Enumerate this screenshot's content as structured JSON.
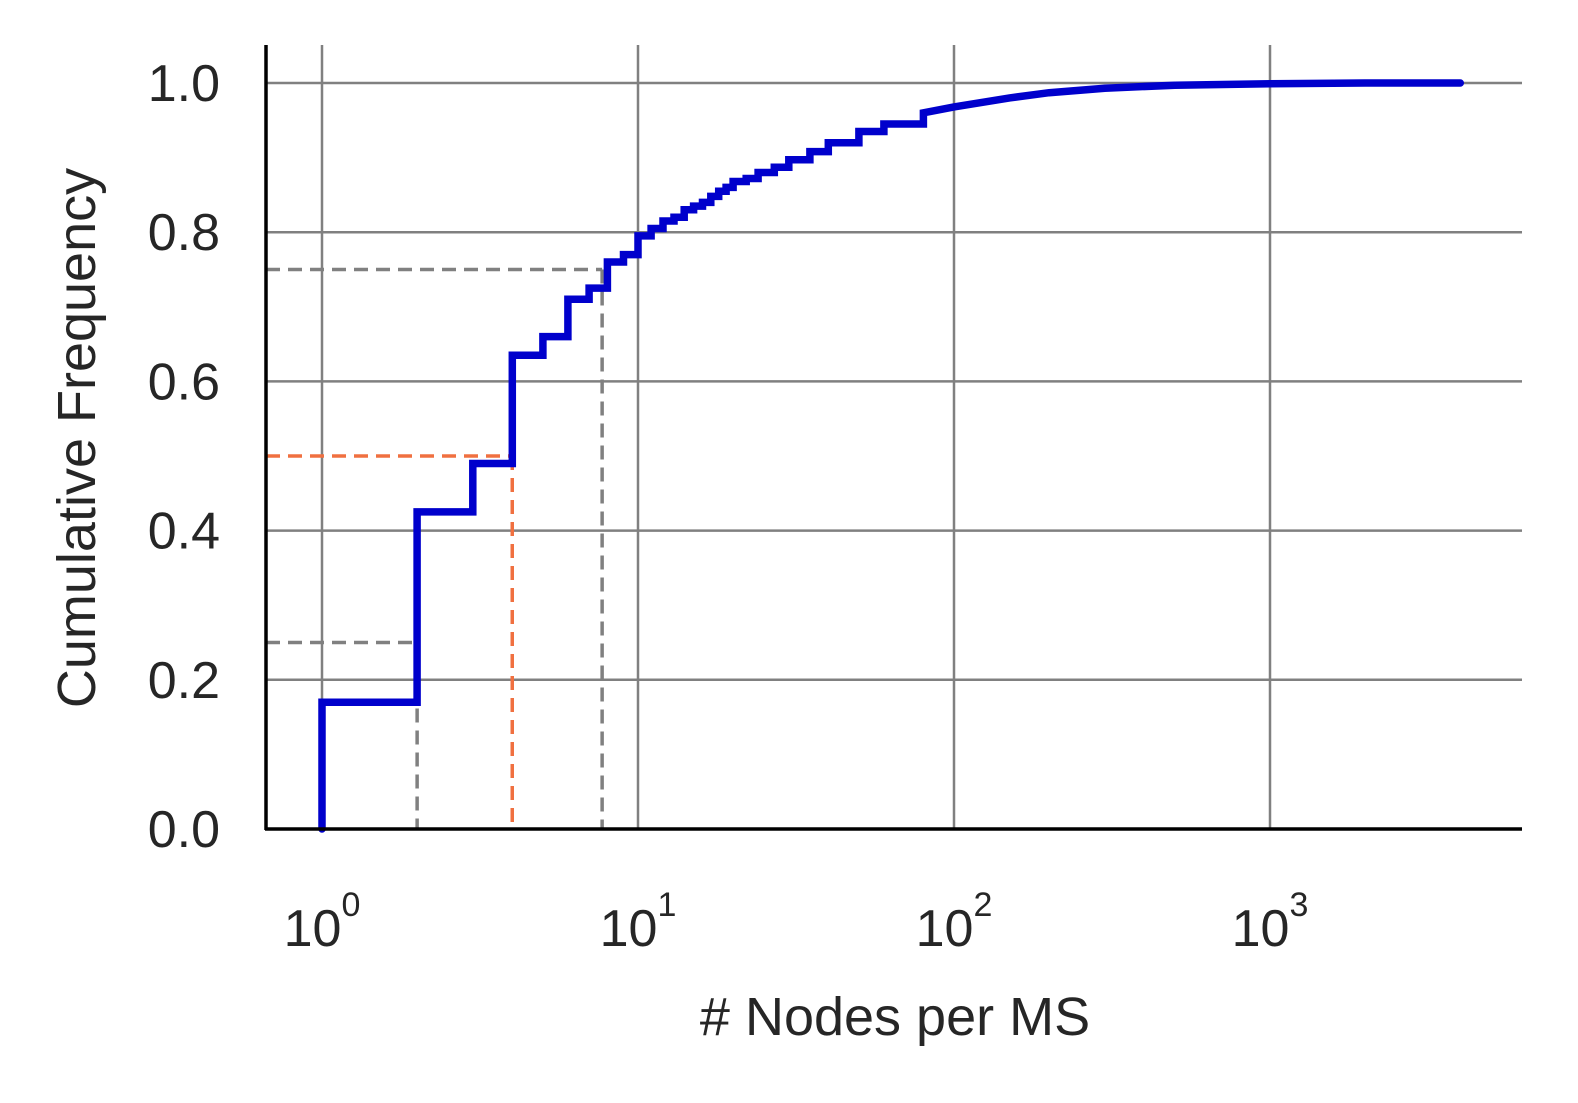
{
  "chart_data": {
    "type": "line",
    "title": "",
    "xlabel": "# Nodes per MS",
    "ylabel": "Cumulative Frequency",
    "x_scale": "log",
    "xlim": [
      0.67,
      5600
    ],
    "ylim": [
      0.0,
      1.05
    ],
    "grid": true,
    "x_ticks": [
      {
        "value": 1,
        "base": "10",
        "exp": "0"
      },
      {
        "value": 10,
        "base": "10",
        "exp": "1"
      },
      {
        "value": 100,
        "base": "10",
        "exp": "2"
      },
      {
        "value": 1000,
        "base": "10",
        "exp": "3"
      }
    ],
    "y_ticks": [
      {
        "value": 0.0,
        "label": "0.0"
      },
      {
        "value": 0.2,
        "label": "0.2"
      },
      {
        "value": 0.4,
        "label": "0.4"
      },
      {
        "value": 0.6,
        "label": "0.6"
      },
      {
        "value": 0.8,
        "label": "0.8"
      },
      {
        "value": 1.0,
        "label": "1.0"
      }
    ],
    "series": [
      {
        "color": "#0000cc",
        "step": true,
        "points": [
          [
            1,
            0.0
          ],
          [
            1,
            0.17
          ],
          [
            2,
            0.17
          ],
          [
            2,
            0.425
          ],
          [
            3,
            0.425
          ],
          [
            3,
            0.49
          ],
          [
            4,
            0.49
          ],
          [
            4,
            0.635
          ],
          [
            5,
            0.635
          ],
          [
            5,
            0.66
          ],
          [
            6,
            0.66
          ],
          [
            6,
            0.71
          ],
          [
            7,
            0.71
          ],
          [
            7,
            0.725
          ],
          [
            8,
            0.725
          ],
          [
            8,
            0.76
          ],
          [
            9,
            0.76
          ],
          [
            9,
            0.77
          ],
          [
            10,
            0.77
          ],
          [
            10,
            0.795
          ],
          [
            11,
            0.795
          ],
          [
            11,
            0.805
          ],
          [
            12,
            0.805
          ],
          [
            12,
            0.815
          ],
          [
            13,
            0.815
          ],
          [
            13,
            0.82
          ],
          [
            14,
            0.82
          ],
          [
            14,
            0.83
          ],
          [
            15,
            0.83
          ],
          [
            15,
            0.835
          ],
          [
            16,
            0.835
          ],
          [
            16,
            0.84
          ],
          [
            17,
            0.84
          ],
          [
            17,
            0.848
          ],
          [
            18,
            0.848
          ],
          [
            18,
            0.855
          ],
          [
            19,
            0.855
          ],
          [
            19,
            0.86
          ],
          [
            20,
            0.86
          ],
          [
            20,
            0.868
          ],
          [
            22,
            0.868
          ],
          [
            22,
            0.872
          ],
          [
            24,
            0.872
          ],
          [
            24,
            0.88
          ],
          [
            27,
            0.88
          ],
          [
            27,
            0.887
          ],
          [
            30,
            0.887
          ],
          [
            30,
            0.897
          ],
          [
            35,
            0.897
          ],
          [
            35,
            0.908
          ],
          [
            40,
            0.908
          ],
          [
            40,
            0.92
          ],
          [
            50,
            0.92
          ],
          [
            50,
            0.935
          ],
          [
            60,
            0.935
          ],
          [
            60,
            0.945
          ],
          [
            80,
            0.945
          ],
          [
            80,
            0.96
          ],
          [
            100,
            0.968
          ],
          [
            150,
            0.98
          ],
          [
            200,
            0.987
          ],
          [
            300,
            0.993
          ],
          [
            500,
            0.997
          ],
          [
            1000,
            0.999
          ],
          [
            2000,
            1.0
          ],
          [
            4000,
            1.0
          ]
        ]
      }
    ],
    "quantile_markers": [
      {
        "quantile": 0.25,
        "x": 2,
        "color": "#808080"
      },
      {
        "quantile": 0.5,
        "x": 4,
        "color": "#f07040"
      },
      {
        "quantile": 0.75,
        "x": 7.7,
        "color": "#808080"
      }
    ]
  }
}
